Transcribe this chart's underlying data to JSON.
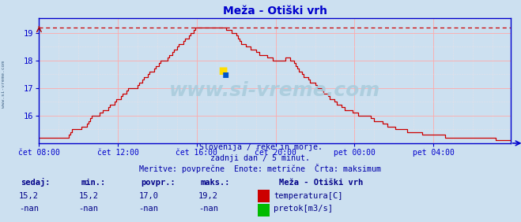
{
  "title": "Meža - Otiški vrh",
  "bg_color": "#cce0f0",
  "plot_bg_color": "#cce0f0",
  "line_color": "#cc0000",
  "dashed_line_color": "#cc0000",
  "axis_color": "#0000cc",
  "grid_major_color": "#ffaaaa",
  "grid_minor_color": "#ffe0e0",
  "text_color": "#0000cc",
  "label_color": "#000088",
  "subtitle_color": "#0000aa",
  "subtitle_lines": [
    "Slovenija / reke in morje.",
    "zadnji dan / 5 minut.",
    "Meritve: povprečne  Enote: metrične  Črta: maksimum"
  ],
  "xtick_labels": [
    "čet 08:00",
    "čet 12:00",
    "čet 16:00",
    "čet 20:00",
    "pet 00:00",
    "pet 04:00"
  ],
  "xtick_positions": [
    0,
    48,
    96,
    144,
    192,
    240
  ],
  "ytick_labels": [
    "16",
    "17",
    "18",
    "19"
  ],
  "ytick_positions": [
    16,
    17,
    18,
    19
  ],
  "ylim": [
    15.0,
    19.55
  ],
  "xlim": [
    0,
    287
  ],
  "max_line_y": 19.2,
  "watermark": "www.si-vreme.com",
  "side_text": "www.si-vreme.com",
  "legend_items": [
    {
      "label": "temperatura[C]",
      "color": "#cc0000"
    },
    {
      "label": "pretok[m3/s]",
      "color": "#00bb00"
    }
  ],
  "stat_headers": [
    "sedaj:",
    "min.:",
    "povpr.:",
    "maks.:"
  ],
  "stat_vals1": [
    "15,2",
    "15,2",
    "17,0",
    "19,2"
  ],
  "stat_vals2": [
    "-nan",
    "-nan",
    "-nan",
    "-nan"
  ],
  "station": "Meža - Otiški vrh"
}
